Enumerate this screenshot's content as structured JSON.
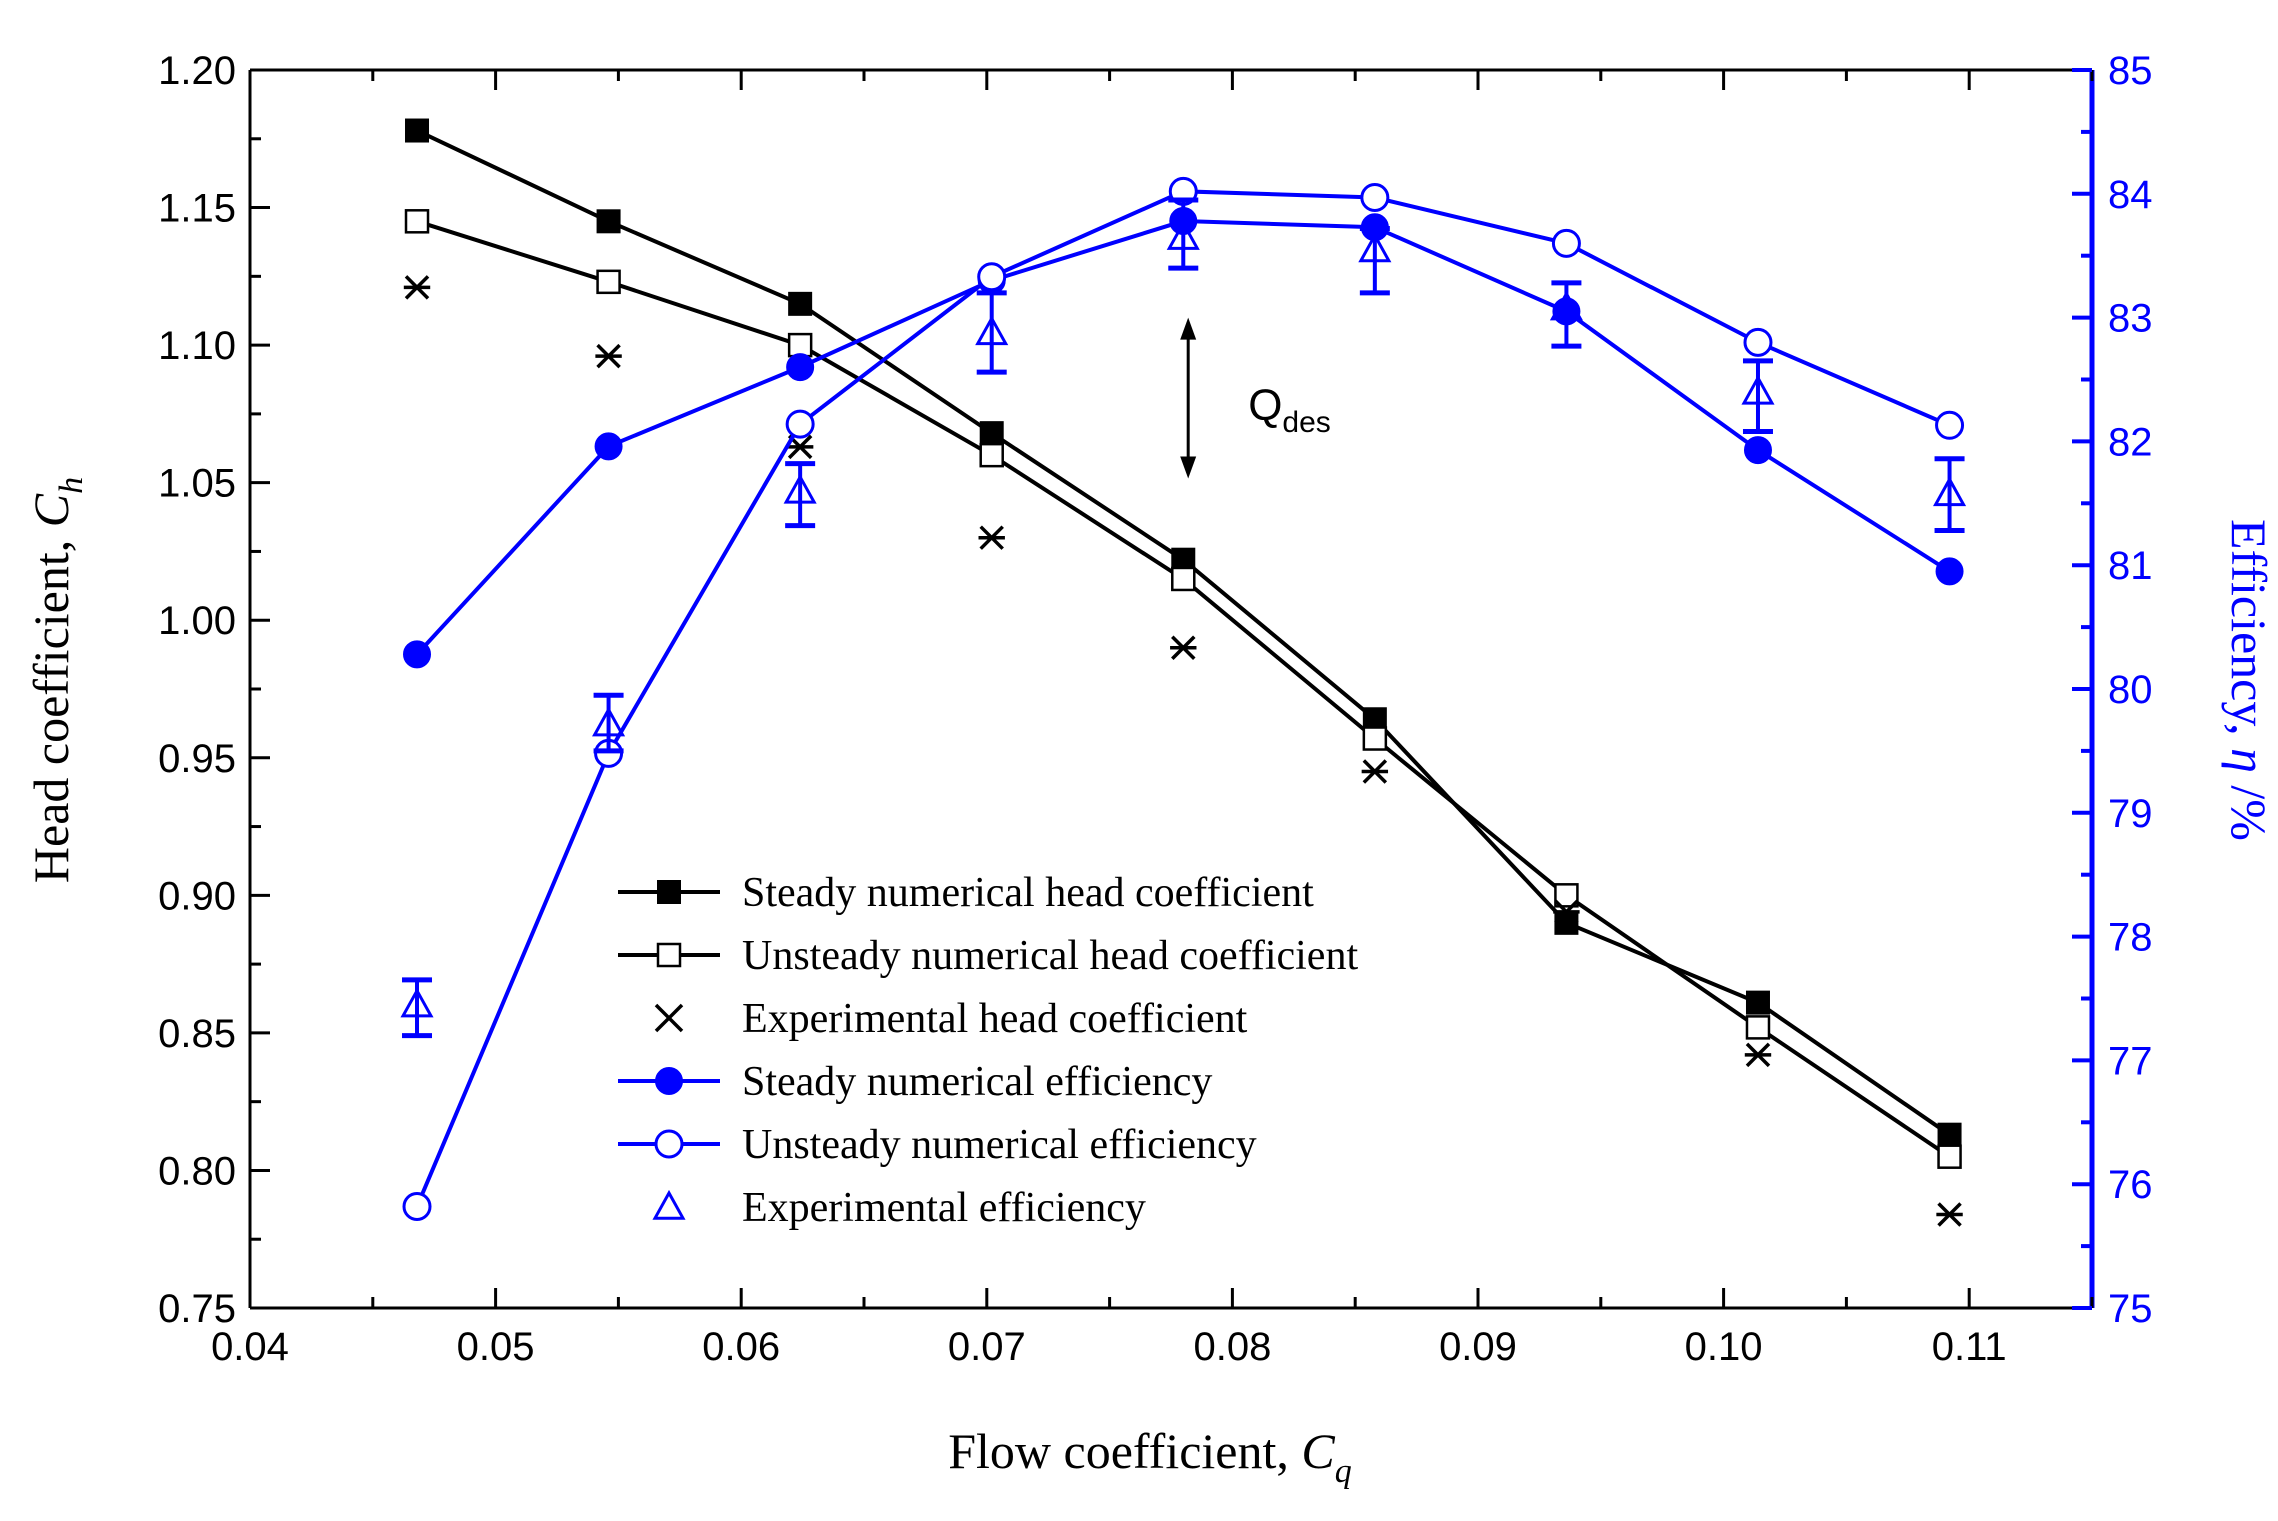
{
  "chart_data": {
    "type": "line",
    "x_label": "Flow coefficient, ",
    "x_label_var": "C",
    "x_label_sub": "q",
    "y_label_left": "Head coefficient, ",
    "y_label_left_var": "C",
    "y_label_left_sub": "h",
    "y_label_right": "Efficiency, ",
    "y_label_right_var": "η",
    "y_label_right_unit": " /%",
    "xlim": [
      0.04,
      0.115
    ],
    "ylim_left": [
      0.75,
      1.2
    ],
    "ylim_right": [
      75,
      85
    ],
    "x_ticks": [
      "0.04",
      "0.05",
      "0.06",
      "0.07",
      "0.08",
      "0.09",
      "0.10",
      "0.11"
    ],
    "y_left_ticks": [
      "0.75",
      "0.80",
      "0.85",
      "0.90",
      "0.95",
      "1.00",
      "1.05",
      "1.10",
      "1.15",
      "1.20"
    ],
    "y_right_ticks": [
      "75",
      "76",
      "77",
      "78",
      "79",
      "80",
      "81",
      "82",
      "83",
      "84",
      "85"
    ],
    "colors": {
      "head": "#000000",
      "efficiency": "#0000ff"
    },
    "series": [
      {
        "name": "Steady numerical head coefficient",
        "axis": "left",
        "marker": "filled-square",
        "line": true,
        "x": [
          0.0468,
          0.0546,
          0.0624,
          0.0702,
          0.078,
          0.0858,
          0.0936,
          0.1014,
          0.1092
        ],
        "y": [
          1.178,
          1.145,
          1.115,
          1.068,
          1.022,
          0.964,
          0.89,
          0.861,
          0.813
        ]
      },
      {
        "name": "Unsteady numerical head coefficient",
        "axis": "left",
        "marker": "open-square",
        "line": true,
        "x": [
          0.0468,
          0.0546,
          0.0624,
          0.0702,
          0.078,
          0.0858,
          0.0936,
          0.1014,
          0.1092
        ],
        "y": [
          1.145,
          1.123,
          1.1,
          1.06,
          1.015,
          0.957,
          0.9,
          0.852,
          0.805
        ]
      },
      {
        "name": "Experimental head coefficient",
        "axis": "left",
        "marker": "asterisk",
        "line": false,
        "x": [
          0.0468,
          0.0546,
          0.0624,
          0.0702,
          0.078,
          0.0858,
          0.0936,
          0.1014,
          0.1092
        ],
        "y": [
          1.121,
          1.096,
          1.063,
          1.03,
          0.99,
          0.945,
          0.894,
          0.842,
          0.784
        ]
      },
      {
        "name": "Steady numerical efficiency",
        "axis": "right",
        "marker": "filled-circle",
        "line": true,
        "x": [
          0.0468,
          0.0546,
          0.0624,
          0.0702,
          0.078,
          0.0858,
          0.0936,
          0.1014,
          0.1092
        ],
        "y": [
          80.28,
          81.96,
          82.6,
          83.3,
          83.78,
          83.73,
          83.05,
          81.93,
          80.95
        ]
      },
      {
        "name": "Unsteady numerical efficiency",
        "axis": "right",
        "marker": "open-circle",
        "line": true,
        "x": [
          0.0468,
          0.0546,
          0.0624,
          0.0702,
          0.078,
          0.0858,
          0.0936,
          0.1014,
          0.1092
        ],
        "y": [
          75.82,
          79.48,
          82.14,
          83.33,
          84.02,
          83.97,
          83.6,
          82.8,
          82.13
        ]
      },
      {
        "name": "Experimental efficiency",
        "axis": "right",
        "marker": "open-triangle",
        "line": false,
        "x": [
          0.0468,
          0.0546,
          0.0624,
          0.0702,
          0.078,
          0.0858,
          0.0936,
          0.1014,
          0.1092
        ],
        "y": [
          77.45,
          79.72,
          81.6,
          82.88,
          83.65,
          83.55,
          83.08,
          82.4,
          81.58
        ],
        "err_low": [
          77.2,
          79.5,
          81.32,
          82.56,
          83.4,
          83.2,
          82.77,
          82.08,
          81.28
        ],
        "err_high": [
          77.65,
          79.95,
          81.82,
          83.2,
          83.95,
          83.72,
          83.28,
          82.65,
          81.86
        ]
      }
    ],
    "annotation": {
      "text": "Q",
      "sub": "des",
      "x": 0.0782,
      "y_top": 83.0,
      "y_bottom": 81.7
    },
    "legend_position": "center-left"
  }
}
